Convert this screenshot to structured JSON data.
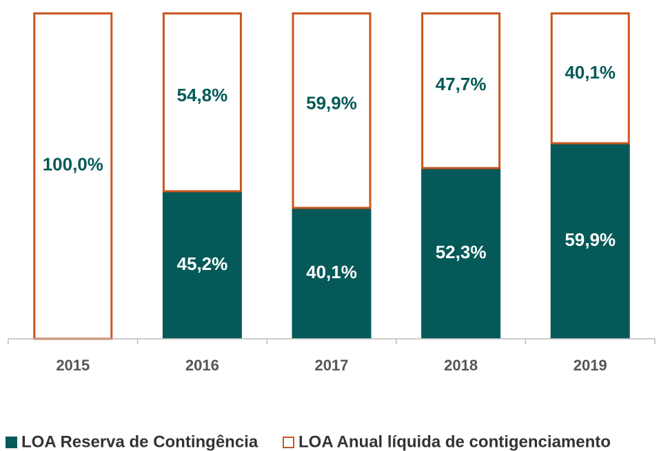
{
  "chart_data": {
    "type": "stacked_bar",
    "categories": [
      "2015",
      "2016",
      "2017",
      "2018",
      "2019"
    ],
    "series": [
      {
        "name": "LOA Reserva de Contingência",
        "color": "#055a59",
        "values": [
          0,
          45.2,
          40.1,
          52.3,
          59.9
        ],
        "value_labels": [
          null,
          "45,2%",
          "40,1%",
          "52,3%",
          "59,9%"
        ]
      },
      {
        "name": "LOA Anual líquida de contigenciamento",
        "color": "#c8561f",
        "values": [
          100,
          54.8,
          59.9,
          47.7,
          40.1
        ],
        "value_labels": [
          "100,0%",
          "54,8%",
          "59,9%",
          "47,7%",
          "40,1%"
        ]
      }
    ]
  }
}
